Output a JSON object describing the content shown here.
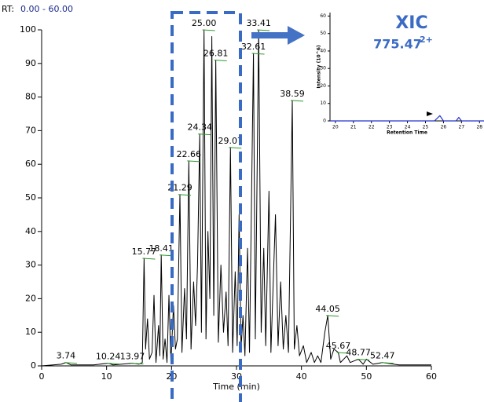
{
  "chart_data": [
    {
      "type": "line",
      "range_label": "RT:",
      "range": "0.00 - 60.00",
      "xlabel": "Time (min)",
      "color": "#000000",
      "xlim": [
        0,
        60
      ],
      "xticks": [
        0,
        10,
        20,
        30,
        40,
        50,
        60
      ],
      "ylim": [
        0,
        100
      ],
      "yticks": [
        0,
        10,
        20,
        30,
        40,
        50,
        60,
        70,
        80,
        90,
        100
      ],
      "x": [
        0,
        3,
        3.74,
        4.5,
        8,
        10.24,
        11,
        13.97,
        15,
        15.5,
        15.77,
        16,
        16.3,
        16.6,
        17,
        17.3,
        17.6,
        18,
        18.2,
        18.41,
        18.7,
        19,
        19.3,
        19.6,
        19.9,
        20.3,
        20.6,
        20.9,
        21.29,
        21.6,
        22,
        22.3,
        22.66,
        23,
        23.4,
        23.7,
        24,
        24.34,
        24.6,
        25.0,
        25.3,
        25.6,
        25.9,
        26.2,
        26.5,
        26.81,
        27.2,
        27.6,
        28,
        28.4,
        28.7,
        29.07,
        29.4,
        29.8,
        30.1,
        30.4,
        30.7,
        31,
        31.3,
        31.7,
        32,
        32.61,
        32.9,
        33.41,
        33.8,
        34.2,
        34.5,
        35,
        35.3,
        36,
        36.4,
        36.8,
        37.2,
        37.6,
        38,
        38.59,
        38.9,
        39.3,
        39.7,
        40.3,
        40.8,
        41.5,
        42,
        42.5,
        43,
        43.6,
        44.05,
        44.5,
        45,
        45.67,
        46,
        47,
        47.5,
        48.77,
        49.5,
        50,
        51,
        52.47,
        55,
        60
      ],
      "values": [
        0,
        0.5,
        1,
        0.3,
        0.3,
        0.8,
        0.3,
        0.8,
        0.5,
        1,
        32,
        5,
        14,
        2,
        4,
        21,
        1,
        12,
        3,
        33,
        2,
        8,
        1,
        21,
        1,
        18,
        5,
        8,
        51,
        4,
        23,
        8,
        61,
        5,
        25,
        12,
        30,
        69,
        10,
        100,
        8,
        40,
        20,
        98,
        15,
        91,
        7,
        30,
        10,
        22,
        6,
        65,
        4,
        28,
        6,
        45,
        5,
        15,
        3,
        35,
        4,
        93,
        8,
        100,
        10,
        35,
        6,
        52,
        4,
        45,
        6,
        25,
        5,
        15,
        4,
        79,
        5,
        12,
        3,
        6,
        1,
        4,
        1,
        3,
        1,
        10,
        15,
        2,
        5,
        4,
        1,
        3,
        1,
        2,
        0.5,
        2,
        0.5,
        1,
        0.3,
        0.3
      ],
      "annotations": [
        {
          "text": "3.74",
          "x": 3.74,
          "y": 1
        },
        {
          "text": "10.24",
          "x": 10.24,
          "y": 0.8
        },
        {
          "text": "13.97",
          "x": 13.97,
          "y": 0.8
        },
        {
          "text": "15.77",
          "x": 15.77,
          "y": 32
        },
        {
          "text": "18.41",
          "x": 18.41,
          "y": 33
        },
        {
          "text": "21.29",
          "x": 21.29,
          "y": 51
        },
        {
          "text": "22.66",
          "x": 22.66,
          "y": 61
        },
        {
          "text": "24.34",
          "x": 24.34,
          "y": 69
        },
        {
          "text": "25.00",
          "x": 25.0,
          "y": 100
        },
        {
          "text": "32.61",
          "x": 32.61,
          "y": 93
        },
        {
          "text": "26.81",
          "x": 26.81,
          "y": 91
        },
        {
          "text": "33.41",
          "x": 33.41,
          "y": 100
        },
        {
          "text": "29.07",
          "x": 29.07,
          "y": 65
        },
        {
          "text": "38.59",
          "x": 38.59,
          "y": 79
        },
        {
          "text": "44.05",
          "x": 44.05,
          "y": 15
        },
        {
          "text": "45.67",
          "x": 45.67,
          "y": 4
        },
        {
          "text": "48.77",
          "x": 48.77,
          "y": 2
        },
        {
          "text": "52.47",
          "x": 52.47,
          "y": 1
        }
      ]
    },
    {
      "type": "line",
      "title": "XIC",
      "subtitle": "775.47",
      "charge": "2+",
      "xlabel": "Retention Time",
      "ylabel": "Intensity (10^6)",
      "color": "#2233cc",
      "xlim": [
        19.7,
        28.25
      ],
      "xticks": [
        20,
        21,
        22,
        23,
        24,
        25,
        26,
        27,
        28
      ],
      "ylim": [
        0,
        62
      ],
      "yticks": [
        0,
        10,
        20,
        30,
        40,
        50,
        60
      ],
      "x": [
        19.7,
        25.5,
        25.8,
        26.0,
        26.7,
        26.85,
        27.0,
        28.25
      ],
      "values": [
        0,
        0,
        3,
        0,
        0,
        2,
        0,
        0
      ]
    }
  ]
}
